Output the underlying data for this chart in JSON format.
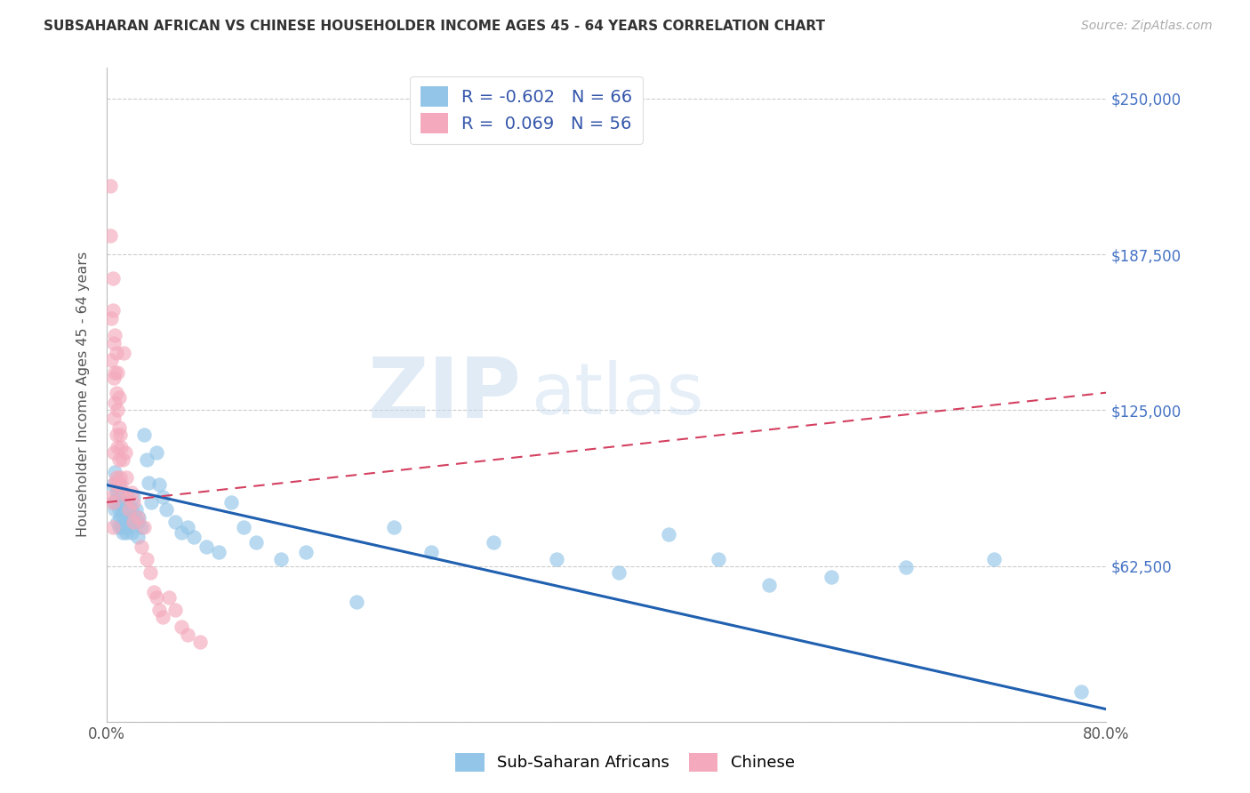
{
  "title": "SUBSAHARAN AFRICAN VS CHINESE HOUSEHOLDER INCOME AGES 45 - 64 YEARS CORRELATION CHART",
  "source": "Source: ZipAtlas.com",
  "ylabel": "Householder Income Ages 45 - 64 years",
  "xlim": [
    0,
    0.8
  ],
  "ylim": [
    0,
    262500
  ],
  "yticks": [
    0,
    62500,
    125000,
    187500,
    250000
  ],
  "ytick_labels": [
    "",
    "$62,500",
    "$125,000",
    "$187,500",
    "$250,000"
  ],
  "xtick_positions": [
    0.0,
    0.1,
    0.2,
    0.3,
    0.4,
    0.5,
    0.6,
    0.7,
    0.8
  ],
  "xtick_labels": [
    "0.0%",
    "",
    "",
    "",
    "",
    "",
    "",
    "",
    "80.0%"
  ],
  "blue_color": "#92C5E8",
  "pink_color": "#F4AABC",
  "blue_line_color": "#2060B0",
  "pink_line_color": "#D44060",
  "legend_text_color": "#3355AA",
  "ytick_label_color": "#4472C4",
  "R_blue": -0.602,
  "N_blue": 66,
  "R_pink": 0.069,
  "N_pink": 56,
  "legend_label_blue": "Sub-Saharan Africans",
  "legend_label_pink": "Chinese",
  "watermark_zip": "ZIP",
  "watermark_atlas": "atlas",
  "blue_scatter_x": [
    0.005,
    0.006,
    0.007,
    0.007,
    0.008,
    0.009,
    0.009,
    0.01,
    0.01,
    0.01,
    0.011,
    0.011,
    0.012,
    0.012,
    0.013,
    0.013,
    0.014,
    0.015,
    0.015,
    0.016,
    0.016,
    0.017,
    0.018,
    0.018,
    0.019,
    0.02,
    0.02,
    0.022,
    0.022,
    0.024,
    0.025,
    0.025,
    0.026,
    0.028,
    0.03,
    0.032,
    0.034,
    0.036,
    0.04,
    0.042,
    0.045,
    0.048,
    0.055,
    0.06,
    0.065,
    0.07,
    0.08,
    0.09,
    0.1,
    0.11,
    0.12,
    0.14,
    0.16,
    0.2,
    0.23,
    0.26,
    0.31,
    0.36,
    0.41,
    0.45,
    0.49,
    0.53,
    0.58,
    0.64,
    0.71,
    0.78
  ],
  "blue_scatter_y": [
    95000,
    88000,
    100000,
    85000,
    92000,
    90000,
    80000,
    95000,
    85000,
    78000,
    90000,
    82000,
    88000,
    78000,
    85000,
    76000,
    82000,
    88000,
    78000,
    84000,
    76000,
    80000,
    86000,
    78000,
    82000,
    85000,
    76000,
    90000,
    82000,
    85000,
    80000,
    74000,
    82000,
    78000,
    115000,
    105000,
    96000,
    88000,
    108000,
    95000,
    90000,
    85000,
    80000,
    76000,
    78000,
    74000,
    70000,
    68000,
    88000,
    78000,
    72000,
    65000,
    68000,
    48000,
    78000,
    68000,
    72000,
    65000,
    60000,
    75000,
    65000,
    55000,
    58000,
    62000,
    65000,
    12000
  ],
  "pink_scatter_x": [
    0.003,
    0.003,
    0.004,
    0.004,
    0.004,
    0.005,
    0.005,
    0.005,
    0.005,
    0.006,
    0.006,
    0.006,
    0.006,
    0.007,
    0.007,
    0.007,
    0.007,
    0.008,
    0.008,
    0.008,
    0.008,
    0.009,
    0.009,
    0.009,
    0.009,
    0.01,
    0.01,
    0.01,
    0.011,
    0.011,
    0.012,
    0.012,
    0.013,
    0.013,
    0.014,
    0.015,
    0.016,
    0.017,
    0.018,
    0.02,
    0.022,
    0.022,
    0.025,
    0.028,
    0.03,
    0.032,
    0.035,
    0.038,
    0.04,
    0.042,
    0.045,
    0.05,
    0.055,
    0.06,
    0.065,
    0.075
  ],
  "pink_scatter_y": [
    215000,
    195000,
    162000,
    145000,
    90000,
    178000,
    165000,
    88000,
    78000,
    152000,
    138000,
    122000,
    108000,
    155000,
    140000,
    128000,
    96000,
    148000,
    132000,
    115000,
    98000,
    140000,
    125000,
    110000,
    95000,
    130000,
    118000,
    105000,
    115000,
    98000,
    110000,
    95000,
    105000,
    92000,
    148000,
    108000,
    98000,
    90000,
    85000,
    92000,
    88000,
    80000,
    82000,
    70000,
    78000,
    65000,
    60000,
    52000,
    50000,
    45000,
    42000,
    50000,
    45000,
    38000,
    35000,
    32000
  ],
  "blue_trend_x": [
    0.0,
    0.8
  ],
  "blue_trend_y": [
    95000,
    5000
  ],
  "pink_trend_x": [
    0.0,
    0.8
  ],
  "pink_trend_y": [
    88000,
    132000
  ]
}
